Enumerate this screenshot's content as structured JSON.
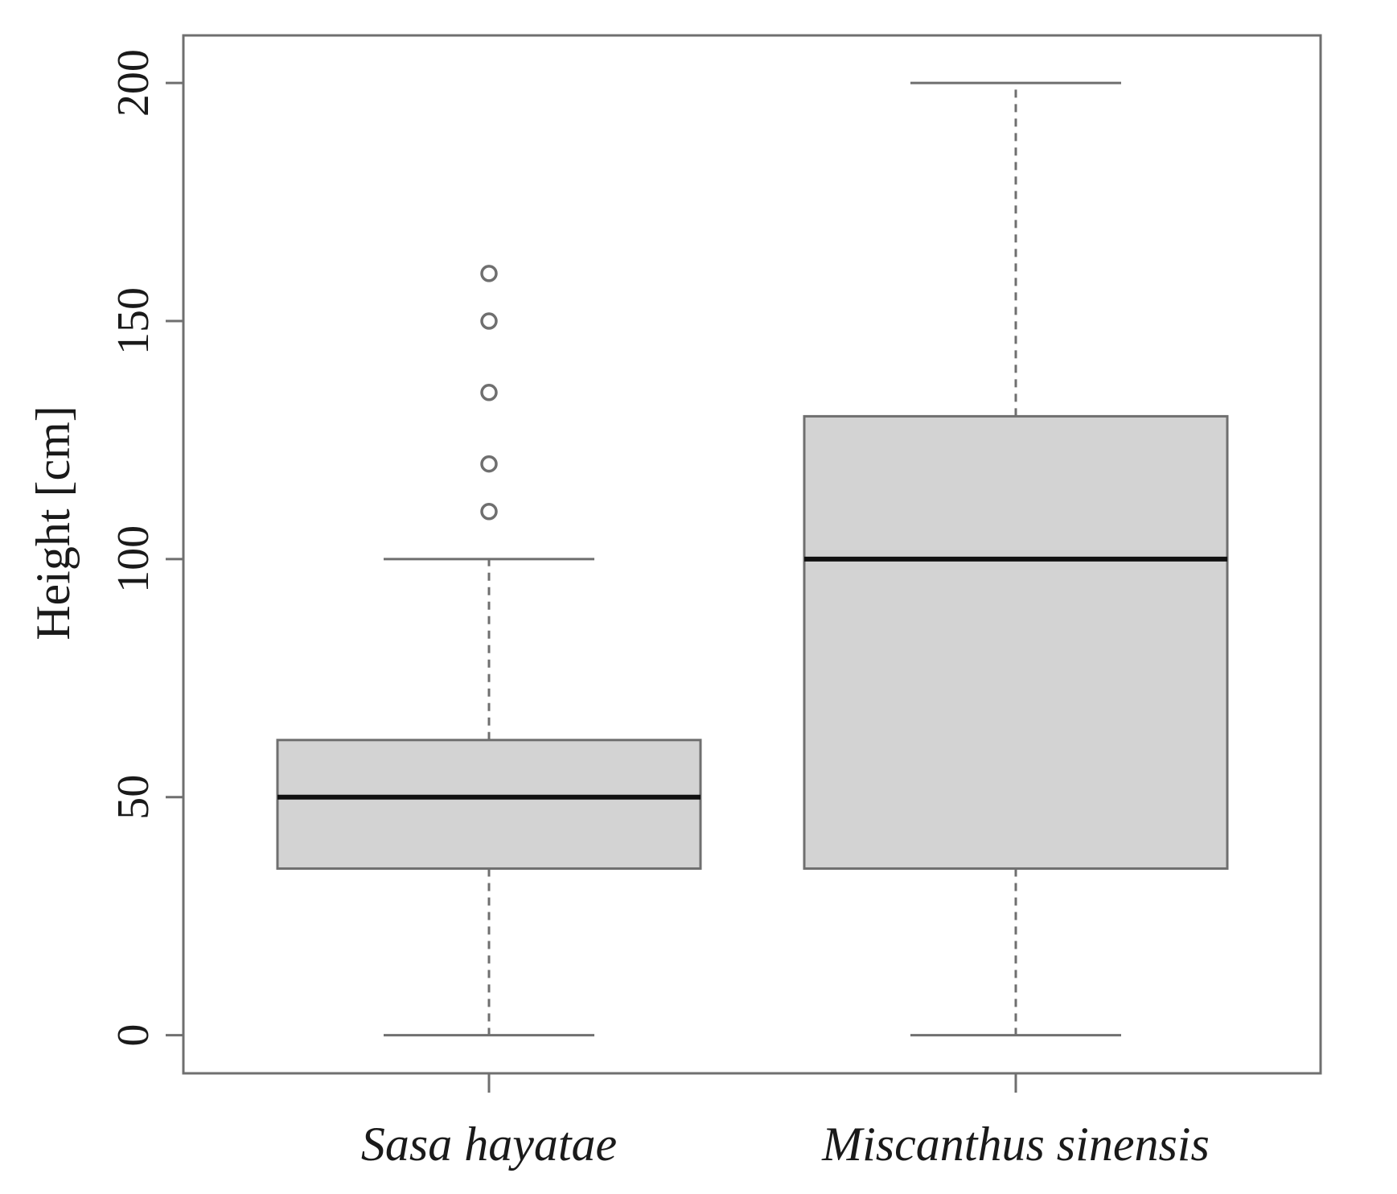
{
  "chart_data": {
    "type": "boxplot",
    "title": "",
    "xlabel": "",
    "ylabel": "Height [cm]",
    "ylim": [
      -8,
      210
    ],
    "yticks": [
      0,
      50,
      100,
      150,
      200
    ],
    "grid": false,
    "colors": {
      "box_fill": "#d3d3d3",
      "outline": "#6f6f6f",
      "median": "#111111"
    },
    "categories": [
      "Sasa hayatae",
      "Miscanthus sinensis"
    ],
    "series": [
      {
        "category": "Sasa hayatae",
        "whisker_low": 0,
        "q1": 35,
        "median": 50,
        "q3": 62,
        "whisker_high": 100,
        "outliers": [
          110,
          120,
          135,
          150,
          160
        ]
      },
      {
        "category": "Miscanthus sinensis",
        "whisker_low": 0,
        "q1": 35,
        "median": 100,
        "q3": 130,
        "whisker_high": 200,
        "outliers": []
      }
    ]
  }
}
